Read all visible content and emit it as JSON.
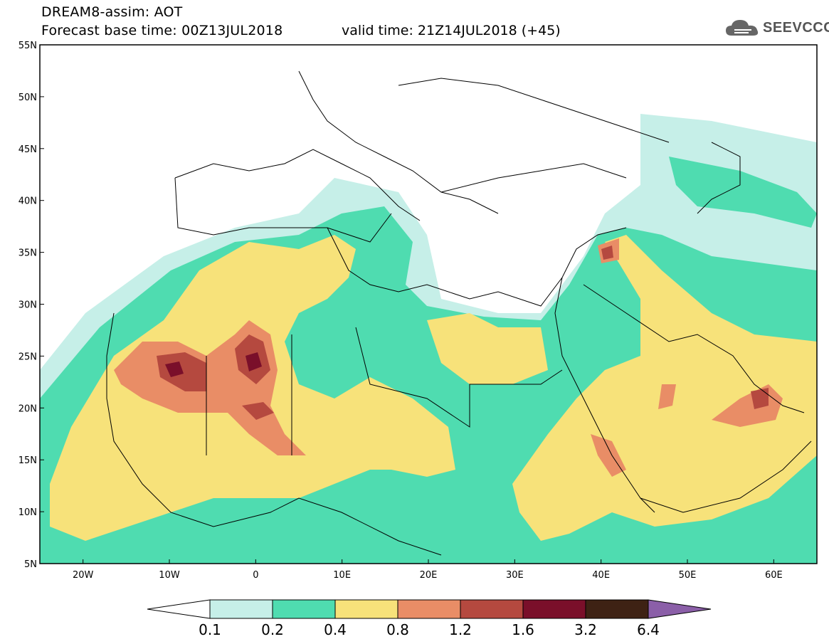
{
  "title": {
    "line1": "DREAM8-assim: AOT",
    "line2": "Forecast base time: 00Z13JUL2018",
    "line2b": "valid time: 21Z14JUL2018 (+45)"
  },
  "logo": {
    "text": "SEEVCCC",
    "icon": "cloud-icon"
  },
  "map": {
    "lon_range": [
      -25,
      65
    ],
    "lat_range": [
      5,
      55
    ],
    "x_ticks": [
      "20W",
      "10W",
      "0",
      "10E",
      "20E",
      "30E",
      "40E",
      "50E",
      "60E"
    ],
    "y_ticks": [
      "55N",
      "50N",
      "45N",
      "40N",
      "35N",
      "30N",
      "25N",
      "20N",
      "15N",
      "10N",
      "5N"
    ]
  },
  "legend": {
    "levels": [
      "0.1",
      "0.2",
      "0.4",
      "0.8",
      "1.2",
      "1.6",
      "3.2",
      "6.4"
    ],
    "colors": [
      "#ffffff",
      "#c6efe8",
      "#4fdcb0",
      "#f7e27a",
      "#e98d66",
      "#b5493f",
      "#7a0f2a",
      "#3e2214",
      "#8b5fa8"
    ]
  },
  "colors": {
    "very_low": "#c6efe8",
    "low": "#4fdcb0",
    "moderate": "#f7e27a",
    "elevated": "#e98d66",
    "high": "#b5493f",
    "very_high": "#7a0f2a",
    "extreme": "#3e2214"
  }
}
